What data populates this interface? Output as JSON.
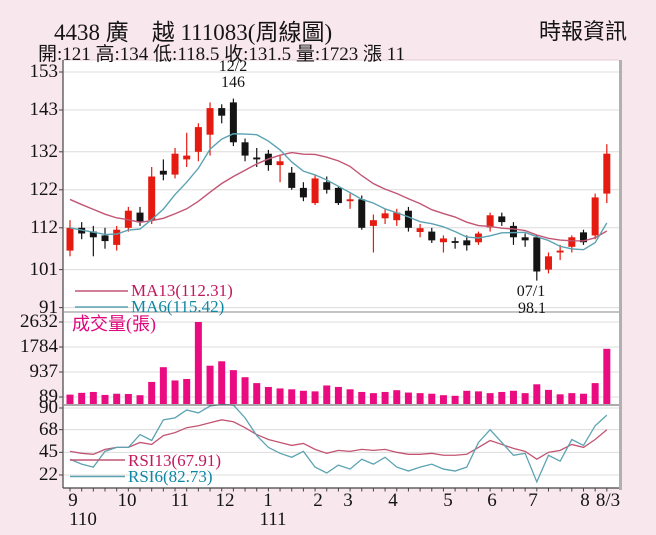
{
  "header": {
    "title": "4438 廣　越 111083(周線圖)",
    "brand": "時報資訊",
    "quote_line": "開:121 高:134 低:118.5 收:131.5 量:1723 漲 11"
  },
  "chart_data": {
    "type": "candlestick",
    "title": "4438 廣越 111083 周線圖",
    "price_axis_ticks": [
      153,
      143,
      132,
      122,
      112,
      101,
      91
    ],
    "volume_axis_ticks": [
      2632,
      1784,
      937,
      89
    ],
    "rsi_axis_ticks": [
      90,
      68,
      45,
      22
    ],
    "x_axis": {
      "month_labels": [
        "9",
        "10",
        "11",
        "12",
        "1",
        "2",
        "3",
        "4",
        "5",
        "6",
        "7",
        "8",
        "8/3"
      ],
      "year_labels": [
        "110",
        "111"
      ]
    },
    "legends": {
      "ma13": "MA13(112.31)",
      "ma6": "MA6(115.42)",
      "volume": "成交量(張)",
      "rsi13": "RSI13(67.91)",
      "rsi6": "RSI6(82.73)"
    },
    "annotations": {
      "high": {
        "date": "12/2",
        "value": "146",
        "candle_index": 14
      },
      "low": {
        "date": "07/1",
        "value": "98.1",
        "candle_index": 40
      }
    },
    "candles_ohlc": [
      [
        106,
        114,
        104.5,
        112
      ],
      [
        112,
        113.5,
        109,
        110.5
      ],
      [
        111,
        112.5,
        104.5,
        109.5
      ],
      [
        110,
        112,
        106.5,
        108.5
      ],
      [
        107.5,
        112.5,
        106,
        111.5
      ],
      [
        112,
        117.5,
        111,
        116.5
      ],
      [
        116,
        117.5,
        112.5,
        113.5
      ],
      [
        114,
        128,
        113,
        125.5
      ],
      [
        127,
        130,
        124.5,
        126
      ],
      [
        126,
        133,
        125,
        131.5
      ],
      [
        130,
        137,
        128,
        131
      ],
      [
        132,
        139.5,
        129.5,
        138.5
      ],
      [
        136.5,
        145,
        131,
        143.5
      ],
      [
        143.5,
        144.5,
        139.5,
        141.5
      ],
      [
        145,
        146,
        133.5,
        134.5
      ],
      [
        134.5,
        135.5,
        129.5,
        131
      ],
      [
        130.5,
        133,
        128,
        130
      ],
      [
        131.5,
        132.5,
        127,
        128.5
      ],
      [
        128.5,
        131,
        124,
        129.5
      ],
      [
        126.5,
        128,
        122,
        122.5
      ],
      [
        122.5,
        124,
        119,
        120
      ],
      [
        118.5,
        126,
        118,
        125
      ],
      [
        124,
        125.5,
        121,
        122
      ],
      [
        122.5,
        123,
        118,
        118.5
      ],
      [
        119,
        121,
        117,
        119.5
      ],
      [
        119.5,
        120.5,
        111.5,
        112
      ],
      [
        112.5,
        115.5,
        105.5,
        114
      ],
      [
        114.5,
        117,
        113,
        115.8
      ],
      [
        114,
        117,
        112.5,
        116
      ],
      [
        116.5,
        117.5,
        111,
        112
      ],
      [
        110.9,
        113,
        109.5,
        111.9
      ],
      [
        111,
        112,
        108,
        108.7
      ],
      [
        108.2,
        110,
        105.5,
        109.2
      ],
      [
        108.5,
        109.5,
        106.5,
        108.2
      ],
      [
        108.7,
        110,
        106,
        107.4
      ],
      [
        108.2,
        111,
        107.5,
        110.5
      ],
      [
        112.1,
        116,
        111,
        115.3
      ],
      [
        115,
        116,
        112.5,
        113.5
      ],
      [
        112.5,
        113.5,
        107.5,
        109.5
      ],
      [
        109.5,
        110.5,
        107,
        108.7
      ],
      [
        109.5,
        110,
        98.1,
        100.5
      ],
      [
        101,
        105.5,
        100,
        104.5
      ],
      [
        105.5,
        107.5,
        103.5,
        106
      ],
      [
        107,
        110,
        105.5,
        109.5
      ],
      [
        110.8,
        111.5,
        107.5,
        108.2
      ],
      [
        110,
        121,
        109,
        120
      ],
      [
        121,
        134,
        118.5,
        131.5
      ]
    ],
    "volume_values": [
      170,
      230,
      260,
      160,
      200,
      190,
      150,
      600,
      1100,
      650,
      700,
      2632,
      1150,
      1300,
      1000,
      760,
      560,
      430,
      380,
      350,
      300,
      280,
      480,
      430,
      350,
      260,
      220,
      260,
      320,
      240,
      220,
      200,
      150,
      130,
      300,
      280,
      220,
      260,
      300,
      220,
      520,
      330,
      180,
      220,
      200,
      560,
      1723
    ],
    "rsi13_values": [
      46,
      44,
      43,
      48,
      50,
      50,
      55,
      53,
      62,
      65,
      70,
      72,
      75,
      78,
      76,
      70,
      63,
      58,
      55,
      52,
      54,
      48,
      44,
      47,
      46,
      48,
      47,
      48,
      45,
      43,
      43,
      44,
      42,
      42,
      43,
      50,
      57,
      53,
      49,
      46,
      38,
      45,
      47,
      53,
      50,
      58,
      67.91
    ],
    "rsi6_values": [
      38,
      33,
      30,
      46,
      50,
      50,
      63,
      57,
      78,
      80,
      88,
      85,
      92,
      95,
      93,
      80,
      62,
      50,
      44,
      40,
      46,
      30,
      24,
      32,
      28,
      38,
      33,
      40,
      30,
      26,
      30,
      33,
      28,
      26,
      30,
      55,
      68,
      55,
      42,
      44,
      15,
      42,
      36,
      58,
      52,
      72,
      82.73
    ],
    "colors": {
      "up": "#e51a10",
      "down": "#141414",
      "ma13_line": "#c25573",
      "ma6_line": "#5ba3b2",
      "volume_bar": "#ea0b81",
      "background": "#f8e7ed",
      "grid": "#dcdcdc"
    }
  }
}
